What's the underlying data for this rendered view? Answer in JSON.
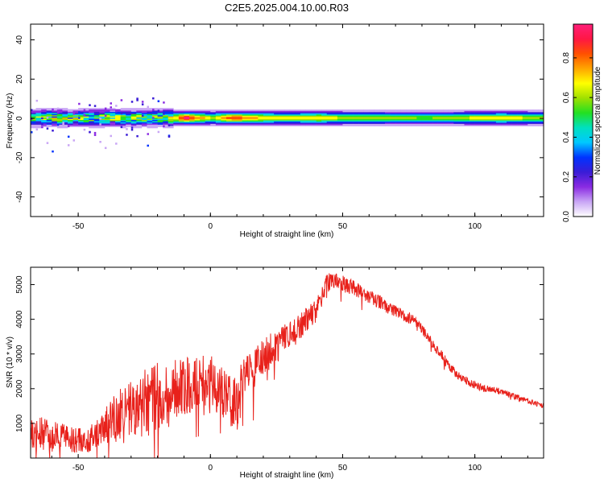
{
  "title": "C2E5.2025.004.10.00.R03",
  "chart_data": [
    {
      "type": "heatmap",
      "xlabel": "Height of straight line (km)",
      "ylabel": "Frequency (Hz)",
      "xlim": [
        -68,
        126
      ],
      "ylim": [
        -50,
        48
      ],
      "xticks": [
        -50,
        0,
        50,
        100
      ],
      "yticks": [
        -40,
        -20,
        0,
        20,
        40
      ],
      "colorbar": {
        "label": "Normalized spectral amplitude",
        "range": [
          0,
          0.97
        ],
        "ticks": [
          0.0,
          0.2,
          0.4,
          0.6,
          0.8
        ],
        "colors": [
          "#ffffff",
          "#c9a6f5",
          "#8a2be2",
          "#3a1cd6",
          "#0033ff",
          "#00c8ff",
          "#00e0c0",
          "#22e022",
          "#9fe000",
          "#ffff00",
          "#ffa500",
          "#ff5000",
          "#ff1744",
          "#ff1f7a"
        ]
      },
      "band": {
        "center_hz": 0,
        "core_halfwidth_hz": 2,
        "outer_halfwidth_hz": 5
      },
      "profile": {
        "height_km": [
          -68,
          -60,
          -50,
          -40,
          -30,
          -20,
          -14,
          -10,
          -5,
          0,
          5,
          10,
          20,
          30,
          40,
          50,
          60,
          70,
          80,
          90,
          100,
          110,
          120,
          126
        ],
        "peak_amplitude": [
          0.55,
          0.6,
          0.58,
          0.62,
          0.6,
          0.65,
          0.7,
          0.95,
          0.75,
          0.6,
          0.8,
          0.82,
          0.68,
          0.66,
          0.7,
          0.62,
          0.6,
          0.58,
          0.56,
          0.58,
          0.66,
          0.68,
          0.62,
          0.58
        ]
      }
    },
    {
      "type": "line",
      "xlabel": "Height of straight line (km)",
      "ylabel": "SNR (10 * v/v)",
      "xlim": [
        -68,
        126
      ],
      "ylim": [
        0,
        5500
      ],
      "xticks": [
        -50,
        0,
        50,
        100
      ],
      "yticks": [
        1000,
        2000,
        3000,
        4000,
        5000
      ],
      "color": "#e8211b",
      "x": [
        -68,
        -64,
        -60,
        -56,
        -52,
        -48,
        -44,
        -40,
        -36,
        -32,
        -28,
        -24,
        -20,
        -16,
        -12,
        -8,
        -4,
        0,
        4,
        8,
        10,
        12,
        16,
        20,
        24,
        28,
        32,
        36,
        40,
        44,
        48,
        52,
        56,
        60,
        64,
        68,
        72,
        76,
        80,
        84,
        88,
        92,
        96,
        100,
        104,
        108,
        112,
        116,
        120,
        126
      ],
      "values": [
        650,
        700,
        620,
        580,
        520,
        500,
        600,
        850,
        1100,
        1300,
        1450,
        1600,
        1750,
        1900,
        2050,
        2150,
        2300,
        2200,
        2000,
        1600,
        1500,
        2100,
        2500,
        2900,
        3150,
        3400,
        3650,
        3950,
        4250,
        5050,
        5100,
        4950,
        4850,
        4650,
        4500,
        4300,
        4150,
        4000,
        3700,
        3300,
        2900,
        2500,
        2250,
        2100,
        2000,
        1950,
        1850,
        1750,
        1650,
        1500
      ],
      "noise_amplitude": [
        450,
        480,
        450,
        420,
        380,
        350,
        420,
        600,
        750,
        850,
        900,
        1000,
        1000,
        950,
        900,
        850,
        800,
        800,
        750,
        700,
        900,
        700,
        600,
        550,
        500,
        450,
        400,
        380,
        320,
        280,
        260,
        240,
        220,
        200,
        200,
        190,
        180,
        170,
        160,
        150,
        140,
        130,
        120,
        110,
        100,
        100,
        90,
        90,
        80,
        80
      ]
    }
  ]
}
